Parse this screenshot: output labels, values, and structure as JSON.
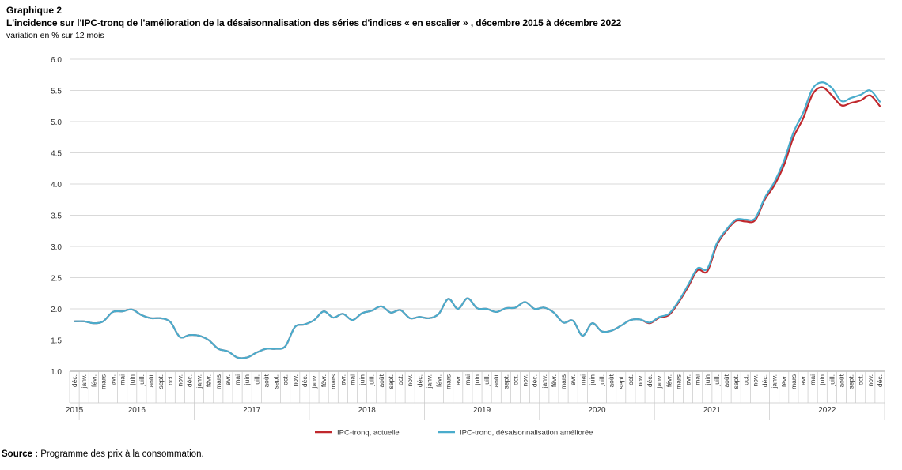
{
  "header": {
    "figure_label": "Graphique 2",
    "title": "L'incidence sur l'IPC-tronq de l'amélioration de la désaisonnalisation des séries d'indices « en escalier » , décembre 2015 à décembre 2022",
    "subtitle": "variation en % sur 12 mois"
  },
  "footer": {
    "source_label": "Source :",
    "source_text": "Programme des prix à la consommation."
  },
  "chart_data": {
    "type": "line",
    "ylim": [
      1.0,
      6.0
    ],
    "yticks": [
      "1.0",
      "1.5",
      "2.0",
      "2.5",
      "3.0",
      "3.5",
      "4.0",
      "4.5",
      "5.0",
      "5.5",
      "6.0"
    ],
    "month_labels": [
      "déc.",
      "janv.",
      "févr.",
      "mars",
      "avr.",
      "mai",
      "juin",
      "juill.",
      "août",
      "sept.",
      "oct.",
      "nov.",
      "déc."
    ],
    "years": [
      "2015",
      "2016",
      "2017",
      "2018",
      "2019",
      "2020",
      "2021",
      "2022"
    ],
    "x": [
      "2015-12",
      "2016-01",
      "2016-02",
      "2016-03",
      "2016-04",
      "2016-05",
      "2016-06",
      "2016-07",
      "2016-08",
      "2016-09",
      "2016-10",
      "2016-11",
      "2016-12",
      "2017-01",
      "2017-02",
      "2017-03",
      "2017-04",
      "2017-05",
      "2017-06",
      "2017-07",
      "2017-08",
      "2017-09",
      "2017-10",
      "2017-11",
      "2017-12",
      "2018-01",
      "2018-02",
      "2018-03",
      "2018-04",
      "2018-05",
      "2018-06",
      "2018-07",
      "2018-08",
      "2018-09",
      "2018-10",
      "2018-11",
      "2018-12",
      "2019-01",
      "2019-02",
      "2019-03",
      "2019-04",
      "2019-05",
      "2019-06",
      "2019-07",
      "2019-08",
      "2019-09",
      "2019-10",
      "2019-11",
      "2019-12",
      "2020-01",
      "2020-02",
      "2020-03",
      "2020-04",
      "2020-05",
      "2020-06",
      "2020-07",
      "2020-08",
      "2020-09",
      "2020-10",
      "2020-11",
      "2020-12",
      "2021-01",
      "2021-02",
      "2021-03",
      "2021-04",
      "2021-05",
      "2021-06",
      "2021-07",
      "2021-08",
      "2021-09",
      "2021-10",
      "2021-11",
      "2021-12",
      "2022-01",
      "2022-02",
      "2022-03",
      "2022-04",
      "2022-05",
      "2022-06",
      "2022-07",
      "2022-08",
      "2022-09",
      "2022-10",
      "2022-11",
      "2022-12"
    ],
    "series": [
      {
        "name": "IPC-tronq, actuelle",
        "color": "#c0282d",
        "values": [
          1.8,
          1.8,
          1.77,
          1.8,
          1.95,
          1.96,
          1.99,
          1.9,
          1.85,
          1.85,
          1.79,
          1.55,
          1.58,
          1.57,
          1.5,
          1.36,
          1.32,
          1.22,
          1.22,
          1.3,
          1.36,
          1.36,
          1.4,
          1.71,
          1.75,
          1.82,
          1.96,
          1.86,
          1.92,
          1.82,
          1.93,
          1.97,
          2.04,
          1.94,
          1.98,
          1.85,
          1.87,
          1.85,
          1.92,
          2.16,
          2.0,
          2.17,
          2.01,
          2.0,
          1.95,
          2.01,
          2.02,
          2.11,
          2.0,
          2.02,
          1.94,
          1.78,
          1.81,
          1.57,
          1.77,
          1.64,
          1.65,
          1.73,
          1.82,
          1.83,
          1.77,
          1.86,
          1.9,
          2.1,
          2.35,
          2.62,
          2.6,
          3.02,
          3.25,
          3.41,
          3.4,
          3.42,
          3.75,
          3.98,
          4.3,
          4.75,
          5.05,
          5.44,
          5.55,
          5.42,
          5.26,
          5.3,
          5.34,
          5.42,
          5.25
        ]
      },
      {
        "name": "IPC-tronq, désaisonnalisation améliorée",
        "color": "#4aaccc",
        "values": [
          1.8,
          1.8,
          1.77,
          1.8,
          1.95,
          1.96,
          1.99,
          1.9,
          1.85,
          1.85,
          1.79,
          1.55,
          1.58,
          1.57,
          1.5,
          1.36,
          1.32,
          1.22,
          1.22,
          1.3,
          1.36,
          1.36,
          1.4,
          1.71,
          1.75,
          1.82,
          1.96,
          1.86,
          1.92,
          1.82,
          1.93,
          1.97,
          2.04,
          1.94,
          1.98,
          1.85,
          1.87,
          1.85,
          1.92,
          2.16,
          2.0,
          2.17,
          2.01,
          2.0,
          1.95,
          2.01,
          2.02,
          2.11,
          2.0,
          2.02,
          1.94,
          1.78,
          1.81,
          1.57,
          1.77,
          1.64,
          1.65,
          1.73,
          1.82,
          1.83,
          1.78,
          1.87,
          1.92,
          2.12,
          2.38,
          2.65,
          2.64,
          3.05,
          3.27,
          3.43,
          3.43,
          3.45,
          3.78,
          4.03,
          4.37,
          4.83,
          5.14,
          5.53,
          5.63,
          5.54,
          5.33,
          5.38,
          5.43,
          5.5,
          5.32
        ]
      }
    ],
    "legend_position": "bottom-center",
    "grid": "horizontal"
  }
}
